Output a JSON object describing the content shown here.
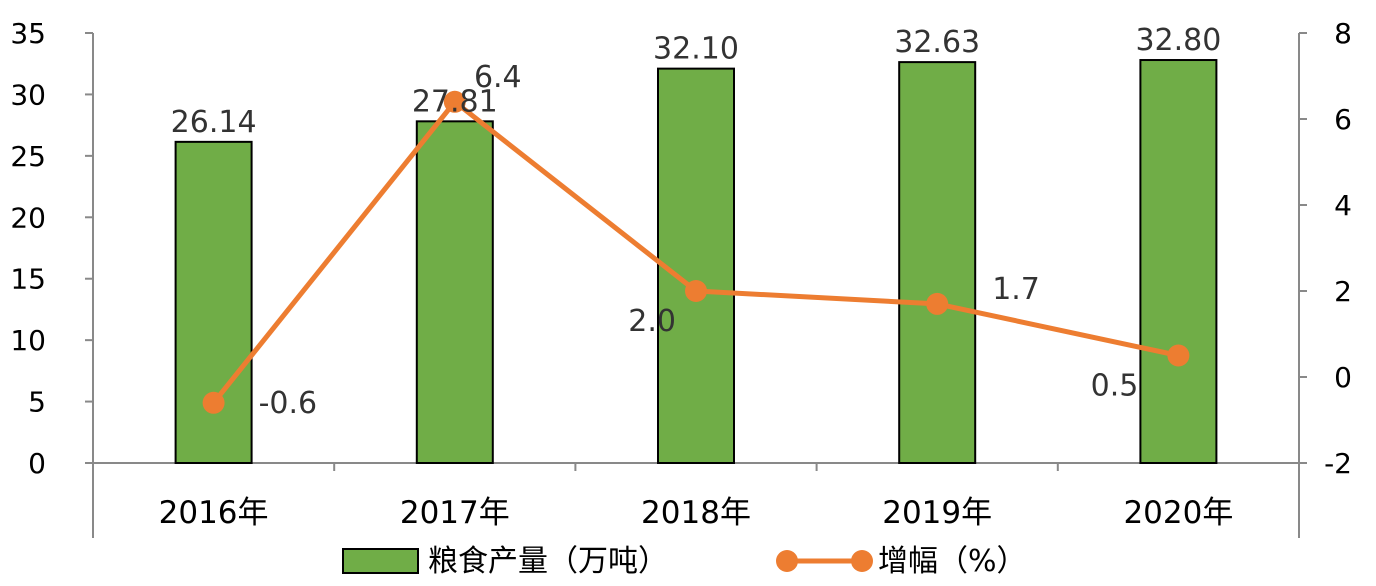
{
  "chart_data": {
    "type": "bar",
    "categories": [
      "2016年",
      "2017年",
      "2018年",
      "2019年",
      "2020年"
    ],
    "series": [
      {
        "name": "粮食产量（万吨）",
        "type": "bar",
        "axis": "left",
        "color": "#70AD47",
        "values": [
          26.14,
          27.81,
          32.1,
          32.63,
          32.8
        ],
        "labels": [
          "26.14",
          "27.81",
          "32.10",
          "32.63",
          "32.80"
        ]
      },
      {
        "name": "增幅（%）",
        "type": "line",
        "axis": "right",
        "color": "#ED7D31",
        "values": [
          -0.6,
          6.4,
          2.0,
          1.7,
          0.5
        ],
        "labels": [
          "-0.6",
          "6.4",
          "2.0",
          "1.7",
          "0.5"
        ]
      }
    ],
    "y_left": {
      "min": 0,
      "max": 35,
      "ticks": [
        "0",
        "5",
        "10",
        "15",
        "20",
        "25",
        "30",
        "35"
      ]
    },
    "y_right": {
      "min": -2,
      "max": 8,
      "ticks": [
        "-2",
        "0",
        "2",
        "4",
        "6",
        "8"
      ]
    },
    "legend": "bottom",
    "grid": false
  }
}
